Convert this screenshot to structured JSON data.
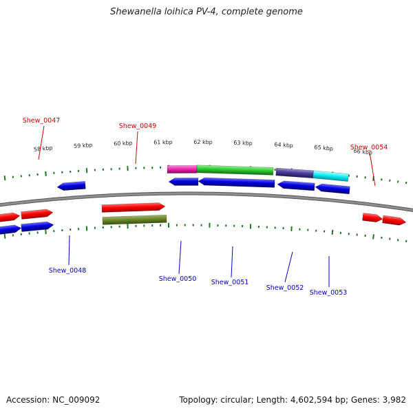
{
  "title": "Shewanella loihica PV-4, complete genome",
  "footer": {
    "accession": "Accession: NC_009092",
    "summary": "Topology: circular; Length: 4,602,594 bp; Genes: 3,982"
  },
  "colors": {
    "backbone": "#8f8f8f",
    "tick": "#1e7a1e",
    "label_top": "#d40000",
    "label_bottom": "#0000cc"
  },
  "scale_labels": [
    "58 kbp",
    "59 kbp",
    "60 kbp",
    "61 kbp",
    "62 kbp",
    "63 kbp",
    "64 kbp",
    "65 kbp",
    "66 kbp"
  ],
  "genes": [
    {
      "name": "Shew_0047",
      "label_side": "top"
    },
    {
      "name": "Shew_0048",
      "label_side": "bottom"
    },
    {
      "name": "Shew_0049",
      "label_side": "top"
    },
    {
      "name": "Shew_0050",
      "label_side": "bottom"
    },
    {
      "name": "Shew_0051",
      "label_side": "bottom"
    },
    {
      "name": "Shew_0052",
      "label_side": "bottom"
    },
    {
      "name": "Shew_0053",
      "label_side": "bottom"
    },
    {
      "name": "Shew_0054",
      "label_side": "top"
    }
  ]
}
